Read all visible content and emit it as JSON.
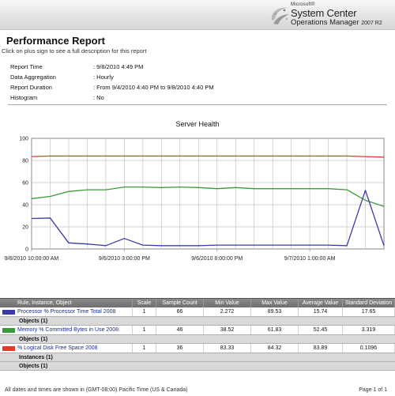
{
  "branding": {
    "microsoft": "Microsoft®",
    "product": "System Center",
    "subproduct": "Operations Manager",
    "version": "2007 R2"
  },
  "report": {
    "title": "Performance Report",
    "subtitle": "Click on plus sign to see a full description for this report"
  },
  "parameters": [
    {
      "label": "Report Time",
      "value": ": 9/8/2010 4:49 PM"
    },
    {
      "label": "Data Aggregation",
      "value": ": Hourly"
    },
    {
      "label": "Report Duration",
      "value": ": From  9/4/2010 4:40 PM  to  9/8/2010 4:40 PM"
    },
    {
      "label": "Histogram",
      "value": ": No"
    }
  ],
  "chart_data": {
    "type": "line",
    "title": "Server Health",
    "ylim": [
      0,
      100
    ],
    "yticks": [
      "0",
      "20",
      "40",
      "60",
      "80",
      "100"
    ],
    "xtick_labels": [
      {
        "label": "9/6/2010 10:00:00 AM",
        "index": 0
      },
      {
        "label": "9/6/2010 3:00:00 PM",
        "index": 5
      },
      {
        "label": "9/6/2010 8:00:00 PM",
        "index": 10
      },
      {
        "label": "9/7/2010 1:00:00 AM",
        "index": 15
      }
    ],
    "grid": true,
    "series": [
      {
        "name": "Processor % Processor Time Total 2008",
        "color": "#3b3ba8",
        "values": [
          27.5,
          28,
          5.5,
          4.5,
          3,
          9.5,
          3.5,
          3,
          3,
          3,
          3.5,
          3.5,
          3.5,
          3.5,
          3.5,
          3.5,
          3.5,
          3,
          53,
          3
        ]
      },
      {
        "name": "Memory % Committed Bytes in Use 2008",
        "color": "#3a9a3a",
        "values": [
          45.5,
          47.5,
          52,
          53.5,
          53.5,
          56,
          56,
          55.5,
          56,
          55.5,
          54.5,
          55.5,
          54.5,
          54.5,
          54.5,
          54.5,
          54.5,
          53.5,
          44,
          38.5
        ]
      },
      {
        "name": "% Logical Disk Free Space 2008",
        "color": "#e33a2a",
        "values": [
          83.5,
          84,
          84,
          84,
          84,
          84,
          84,
          84,
          84,
          84,
          84,
          84,
          84,
          84,
          84,
          84,
          84,
          84,
          83.5,
          83
        ]
      }
    ]
  },
  "legend": {
    "headers": [
      "Rule, Instance, Object",
      "Scale",
      "Sample Count",
      "Min Value",
      "Max Value",
      "Average Value",
      "Standard Deviation"
    ],
    "rows": [
      {
        "name": "Processor % Processor Time Total 2008",
        "color": "#3b3ba8",
        "scale": "1",
        "count": "66",
        "min": "2.272",
        "max": "89.53",
        "avg": "15.74",
        "std": "17.65",
        "subs": [
          "Objects (1)"
        ]
      },
      {
        "name": "Memory % Committed Bytes in Use 2008",
        "color": "#3a9a3a",
        "scale": "1",
        "count": "46",
        "min": "38.52",
        "max": "61.83",
        "avg": "52.45",
        "std": "3.319",
        "subs": [
          "Objects (1)"
        ]
      },
      {
        "name": "% Logical Disk Free Space 2008",
        "color": "#e33a2a",
        "scale": "1",
        "count": "36",
        "min": "83.33",
        "max": "84.32",
        "avg": "83.89",
        "std": "0.1096",
        "subs": [
          "Instances (1)",
          "Objects (1)"
        ]
      }
    ]
  },
  "footer": {
    "timezone_note": "All dates and times are shown in (GMT-08:00) Pacific Time (US & Canada)",
    "page": "Page 1 of 1"
  }
}
